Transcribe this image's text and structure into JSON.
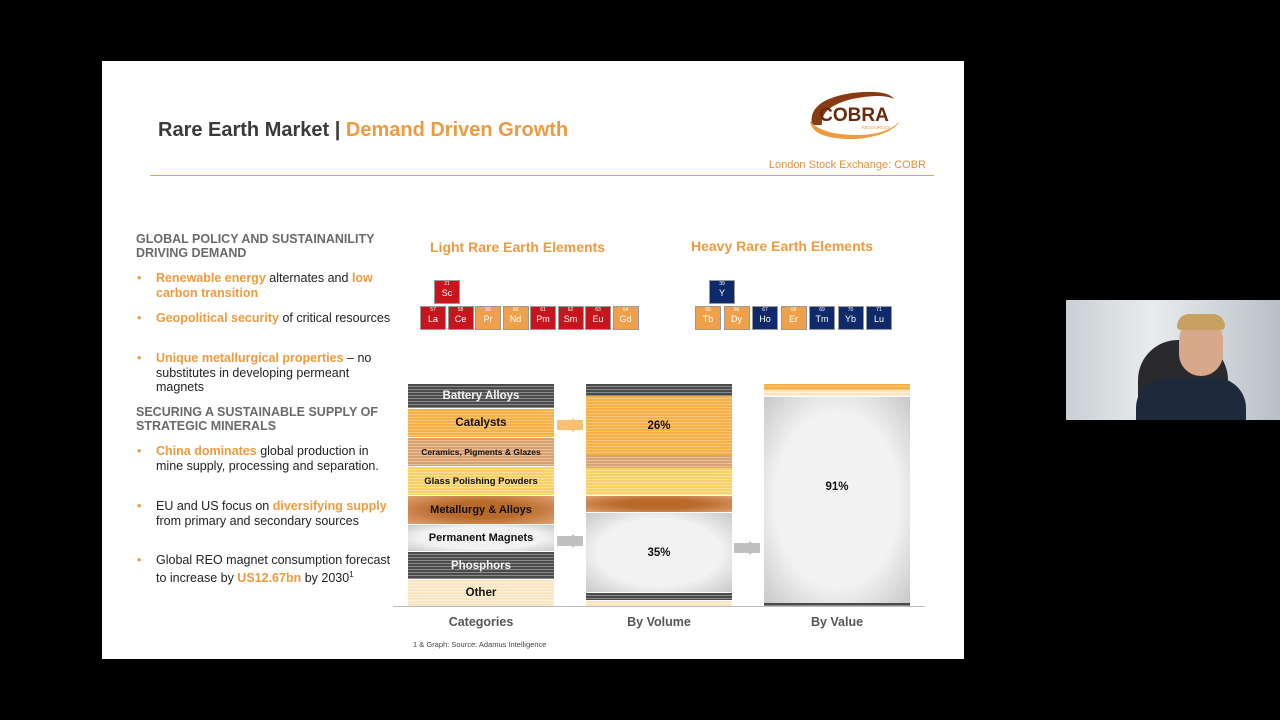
{
  "slide": {
    "title_main": "Rare Earth Market | ",
    "title_accent": "Demand Driven Growth",
    "logo_text": "COBRA",
    "logo_sub": "RESOURCES",
    "exchange": "London Stock Exchange: COBR",
    "section1": "GLOBAL POLICY AND SUSTAINANILITY DRIVING DEMAND",
    "bullets1": [
      [
        {
          "t": "Renewable energy",
          "hl": true
        },
        {
          "t": " alternates and "
        },
        {
          "t": "low carbon transition",
          "hl": true
        }
      ],
      [
        {
          "t": "Geopolitical security",
          "hl": true
        },
        {
          "t": " of critical resources"
        }
      ],
      [
        {
          "t": "Unique metallurgical properties",
          "hl": true
        },
        {
          "t": " – no substitutes in developing permeant magnets"
        }
      ]
    ],
    "section2": "SECURING A SUSTAINABLE SUPPLY OF STRATEGIC MINERALS",
    "bullets2": [
      [
        {
          "t": "China dominates",
          "hl": true
        },
        {
          "t": " global production in mine supply, processing and separation."
        }
      ],
      [
        {
          "t": "EU and US focus on "
        },
        {
          "t": "diversifying supply",
          "hl": true
        },
        {
          "t": " from primary and secondary sources"
        }
      ],
      [
        {
          "t": "Global REO magnet consumption forecast to increase by "
        },
        {
          "t": "US12.67bn",
          "hl": true
        },
        {
          "t": " by 2030"
        },
        {
          "t": "1",
          "sup": true
        }
      ]
    ],
    "light_heading": "Light Rare Earth Elements",
    "heavy_heading": "Heavy Rare Earth Elements",
    "light_top": {
      "n": "21",
      "s": "Sc",
      "c": "red"
    },
    "light_row": [
      {
        "n": "57",
        "s": "La",
        "c": "red"
      },
      {
        "n": "58",
        "s": "Ce",
        "c": "red"
      },
      {
        "n": "59",
        "s": "Pr",
        "c": "org"
      },
      {
        "n": "60",
        "s": "Nd",
        "c": "org"
      },
      {
        "n": "61",
        "s": "Pm",
        "c": "red"
      },
      {
        "n": "62",
        "s": "Sm",
        "c": "red"
      },
      {
        "n": "63",
        "s": "Eu",
        "c": "red"
      },
      {
        "n": "64",
        "s": "Gd",
        "c": "org"
      }
    ],
    "heavy_top": {
      "n": "39",
      "s": "Y",
      "c": "navy"
    },
    "heavy_row": [
      {
        "n": "65",
        "s": "Tb",
        "c": "org"
      },
      {
        "n": "66",
        "s": "Dy",
        "c": "org"
      },
      {
        "n": "67",
        "s": "Ho",
        "c": "navy"
      },
      {
        "n": "68",
        "s": "Er",
        "c": "org"
      },
      {
        "n": "69",
        "s": "Tm",
        "c": "navy"
      },
      {
        "n": "70",
        "s": "Yb",
        "c": "navy"
      },
      {
        "n": "71",
        "s": "Lu",
        "c": "navy"
      }
    ],
    "source": "1 & Graph: Source: Adamus Intelligence"
  },
  "chart_data": {
    "type": "bar",
    "categories": [
      "Battery Alloys",
      "Catalysts",
      "Ceramics, Pigments & Glazes",
      "Glass Polishing Powders",
      "Metallurgy & Alloys",
      "Permanent Magnets",
      "Phosphors",
      "Other"
    ],
    "columns": [
      "Categories",
      "By Volume",
      "By Value"
    ],
    "labels": {
      "catalysts_volume": "26%",
      "magnets_volume": "35%",
      "magnets_value": "91%"
    },
    "volume_percent": {
      "Catalysts": 26,
      "Permanent Magnets": 35
    },
    "value_percent": {
      "Permanent Magnets": 91
    }
  },
  "colors": {
    "accent": "#ee9a3e",
    "red": "#c8141c",
    "navy": "#0f2a6a"
  }
}
